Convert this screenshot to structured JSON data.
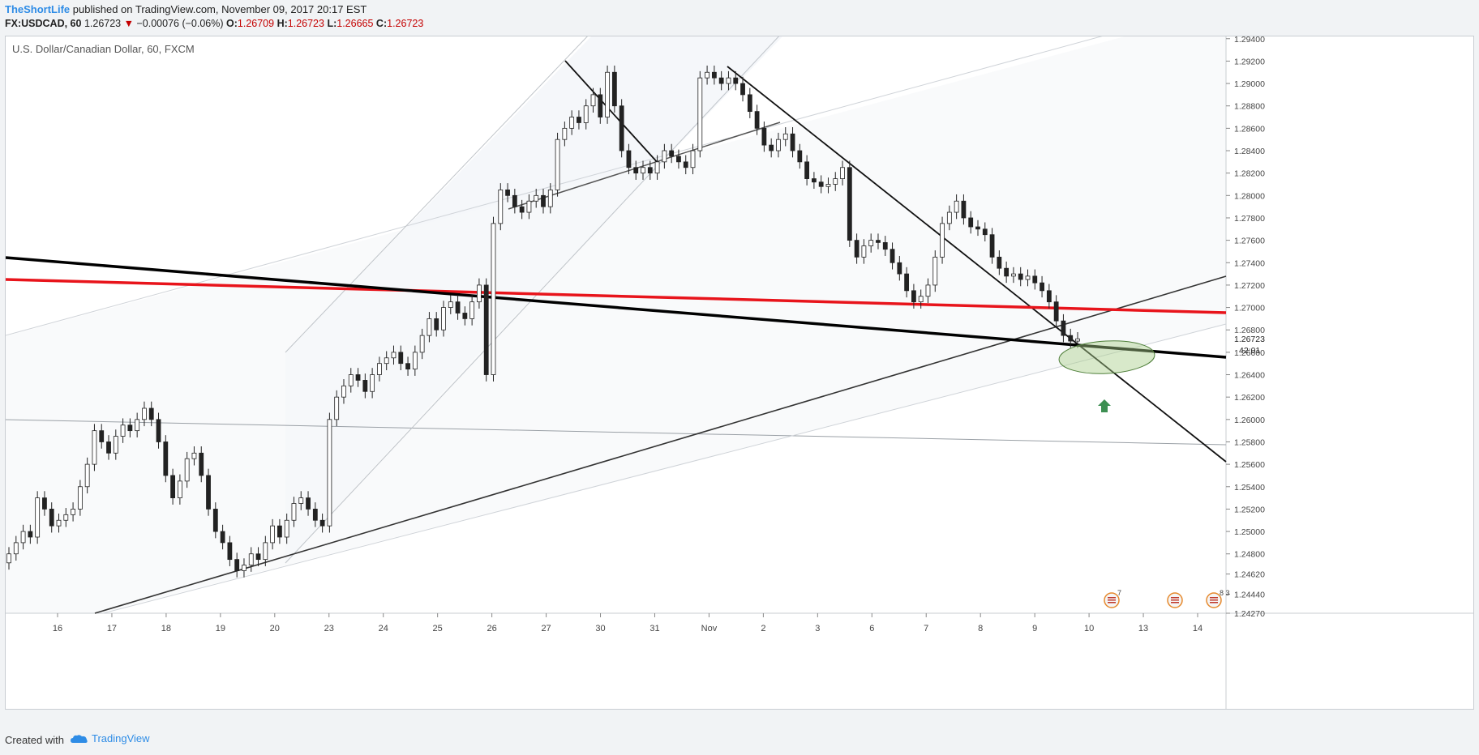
{
  "header": {
    "author": "TheShortLife",
    "published": " published on TradingView.com, November 09, 2017 20:17 EST",
    "symbol": "FX:USDCAD, 60",
    "last": "1.26723",
    "change": "−0.00076 (−0.06%)",
    "o_label": "O:",
    "o_value": "1.26709",
    "h_label": "H:",
    "h_value": "1.26723",
    "l_label": "L:",
    "l_value": "1.26665",
    "c_label": "C:",
    "c_value": "1.26723"
  },
  "footer": {
    "created_with": "Created with",
    "brand": "TradingView"
  },
  "chart_data": {
    "type": "candlestick",
    "title": "U.S. Dollar/Canadian Dollar, 60, FXCM",
    "ylim": [
      1.2427,
      1.2942
    ],
    "y_ticks": [
      "1.29400",
      "1.29200",
      "1.29000",
      "1.28800",
      "1.28600",
      "1.28400",
      "1.28200",
      "1.28000",
      "1.27800",
      "1.27600",
      "1.27400",
      "1.27200",
      "1.27000",
      "1.26800",
      "1.26600",
      "1.26400",
      "1.26200",
      "1.26000",
      "1.25800",
      "1.25600",
      "1.25400",
      "1.25200",
      "1.25000",
      "1.24800",
      "1.24620",
      "1.24440",
      "1.24270"
    ],
    "x_ticks": [
      "16",
      "17",
      "18",
      "19",
      "20",
      "23",
      "24",
      "25",
      "26",
      "27",
      "30",
      "31",
      "Nov",
      "2",
      "3",
      "6",
      "7",
      "8",
      "9",
      "10",
      "13",
      "14"
    ],
    "last_price_label": "1.26723",
    "countdown_label": "42:01",
    "closes": [
      1.248,
      1.249,
      1.25,
      1.2495,
      1.253,
      1.252,
      1.2505,
      1.251,
      1.2515,
      1.252,
      1.254,
      1.256,
      1.259,
      1.258,
      1.257,
      1.2585,
      1.2595,
      1.259,
      1.26,
      1.261,
      1.26,
      1.258,
      1.255,
      1.253,
      1.2545,
      1.2565,
      1.257,
      1.255,
      1.252,
      1.25,
      1.249,
      1.2475,
      1.2465,
      1.247,
      1.248,
      1.2475,
      1.249,
      1.2505,
      1.2495,
      1.251,
      1.2525,
      1.253,
      1.252,
      1.251,
      1.2505,
      1.26,
      1.262,
      1.263,
      1.264,
      1.2635,
      1.2625,
      1.264,
      1.265,
      1.2655,
      1.266,
      1.265,
      1.2645,
      1.266,
      1.2675,
      1.269,
      1.268,
      1.27,
      1.2705,
      1.2695,
      1.269,
      1.2705,
      1.272,
      1.264,
      1.2775,
      1.2805,
      1.28,
      1.279,
      1.2785,
      1.2795,
      1.28,
      1.279,
      1.2805,
      1.285,
      1.286,
      1.287,
      1.2865,
      1.288,
      1.289,
      1.287,
      1.291,
      1.288,
      1.284,
      1.2825,
      1.282,
      1.2825,
      1.282,
      1.283,
      1.284,
      1.2835,
      1.283,
      1.2825,
      1.284,
      1.2905,
      1.291,
      1.2905,
      1.29,
      1.2905,
      1.29,
      1.289,
      1.2875,
      1.286,
      1.2845,
      1.284,
      1.285,
      1.2855,
      1.284,
      1.283,
      1.2815,
      1.2812,
      1.2808,
      1.281,
      1.2815,
      1.2825,
      1.276,
      1.2745,
      1.2755,
      1.276,
      1.2758,
      1.2752,
      1.274,
      1.273,
      1.2715,
      1.2705,
      1.271,
      1.272,
      1.2745,
      1.2775,
      1.2785,
      1.2795,
      1.278,
      1.2772,
      1.277,
      1.2765,
      1.2745,
      1.2735,
      1.2728,
      1.273,
      1.2725,
      1.2728,
      1.2722,
      1.2715,
      1.2705,
      1.2688,
      1.2675,
      1.267,
      1.2672
    ]
  },
  "legend_icons": [
    {
      "name": "us-flag-event-icon",
      "count": "7"
    },
    {
      "name": "us-flag-event-icon",
      "count": ""
    },
    {
      "name": "us-flag-event-icon",
      "count": "8 3"
    }
  ],
  "colors": {
    "support_red": "#e8141b",
    "trendline": "#000000",
    "ellipse_fill": "#a9cf8a",
    "arrow_up": "#3d8f52"
  }
}
